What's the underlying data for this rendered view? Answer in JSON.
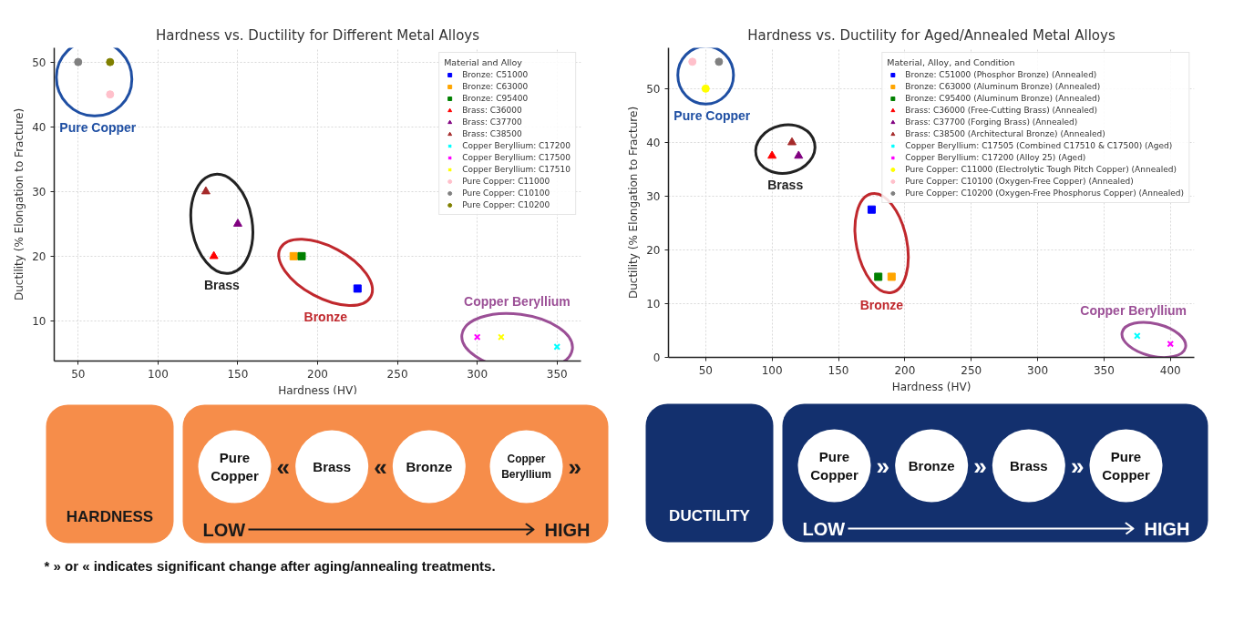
{
  "chart_data": [
    {
      "type": "scatter",
      "title": "Hardness vs. Ductility for Different Metal Alloys",
      "xlabel": "Hardness (HV)",
      "ylabel": "Ductility (% Elongation to Fracture)",
      "legend_title": "Material and Alloy",
      "legend": "top right",
      "grid": true,
      "xlim": [
        35,
        365
      ],
      "xticks": [
        50,
        100,
        150,
        200,
        250,
        300,
        350
      ],
      "ylim": [
        3.8,
        52.2
      ],
      "yticks": [
        10,
        20,
        30,
        40,
        50
      ],
      "series": [
        {
          "name": "Bronze: C51000",
          "color": "#0000ff",
          "marker": "square",
          "x": [
            225
          ],
          "values": [
            15
          ]
        },
        {
          "name": "Bronze: C63000",
          "color": "#ffa500",
          "marker": "square",
          "x": [
            185
          ],
          "values": [
            20
          ]
        },
        {
          "name": "Bronze: C95400",
          "color": "#008000",
          "marker": "square",
          "x": [
            190
          ],
          "values": [
            20
          ]
        },
        {
          "name": "Brass: C36000",
          "color": "#ff0000",
          "marker": "triangle",
          "x": [
            135
          ],
          "values": [
            20
          ]
        },
        {
          "name": "Brass: C37700",
          "color": "#800080",
          "marker": "triangle",
          "x": [
            150
          ],
          "values": [
            25
          ]
        },
        {
          "name": "Brass: C38500",
          "color": "#a52a2a",
          "marker": "triangle",
          "x": [
            130
          ],
          "values": [
            30
          ]
        },
        {
          "name": "Copper Beryllium: C17200",
          "color": "#00ffff",
          "marker": "cross",
          "x": [
            350
          ],
          "values": [
            6
          ]
        },
        {
          "name": "Copper Beryllium: C17500",
          "color": "#ff00ff",
          "marker": "cross",
          "x": [
            300
          ],
          "values": [
            7.5
          ]
        },
        {
          "name": "Copper Beryllium: C17510",
          "color": "#ffff00",
          "marker": "cross",
          "x": [
            315
          ],
          "values": [
            7.5
          ]
        },
        {
          "name": "Pure Copper: C11000",
          "color": "#ffc0cb",
          "marker": "circle",
          "x": [
            70
          ],
          "values": [
            45
          ]
        },
        {
          "name": "Pure Copper: C10100",
          "color": "#808080",
          "marker": "circle",
          "x": [
            50
          ],
          "values": [
            50
          ]
        },
        {
          "name": "Pure Copper: C10200",
          "color": "#808000",
          "marker": "circle",
          "x": [
            70
          ],
          "values": [
            50
          ]
        }
      ],
      "annotations": [
        "Bronze",
        "Brass",
        "Copper Beryllium",
        "Pure Copper"
      ]
    },
    {
      "type": "scatter",
      "title": "Hardness vs. Ductility for Aged/Annealed Metal Alloys",
      "xlabel": "Hardness (HV)",
      "ylabel": "Ductility (% Elongation to Fracture)",
      "legend_title": "Material, Alloy, and Condition",
      "legend": "top right",
      "grid": true,
      "xlim": [
        22,
        418
      ],
      "xticks": [
        50,
        100,
        150,
        200,
        250,
        300,
        350,
        400
      ],
      "ylim": [
        0,
        57.6
      ],
      "yticks": [
        0,
        10,
        20,
        30,
        40,
        50
      ],
      "series": [
        {
          "name": "Bronze: C51000 (Phosphor Bronze) (Annealed)",
          "color": "#0000ff",
          "marker": "square",
          "x": [
            175
          ],
          "values": [
            27.5
          ]
        },
        {
          "name": "Bronze: C63000 (Aluminum Bronze) (Annealed)",
          "color": "#ffa500",
          "marker": "square",
          "x": [
            190
          ],
          "values": [
            15
          ]
        },
        {
          "name": "Bronze: C95400 (Aluminum Bronze) (Annealed)",
          "color": "#008000",
          "marker": "square",
          "x": [
            180
          ],
          "values": [
            15
          ]
        },
        {
          "name": "Brass: C36000 (Free-Cutting Brass) (Annealed)",
          "color": "#ff0000",
          "marker": "triangle",
          "x": [
            100
          ],
          "values": [
            37.5
          ]
        },
        {
          "name": "Brass: C37700 (Forging Brass) (Annealed)",
          "color": "#800080",
          "marker": "triangle",
          "x": [
            120
          ],
          "values": [
            37.5
          ]
        },
        {
          "name": "Brass: C38500 (Architectural Bronze) (Annealed)",
          "color": "#a52a2a",
          "marker": "triangle",
          "x": [
            115
          ],
          "values": [
            40
          ]
        },
        {
          "name": "Copper Beryllium: C17505 (Combined C17510 & C17500) (Aged)",
          "color": "#00ffff",
          "marker": "cross",
          "x": [
            375
          ],
          "values": [
            4
          ]
        },
        {
          "name": "Copper Beryllium: C17200 (Alloy 25) (Aged)",
          "color": "#ff00ff",
          "marker": "cross",
          "x": [
            400
          ],
          "values": [
            2.5
          ]
        },
        {
          "name": "Pure Copper: C11000 (Electrolytic Tough Pitch Copper) (Annealed)",
          "color": "#ffff00",
          "marker": "circle",
          "x": [
            50
          ],
          "values": [
            50
          ]
        },
        {
          "name": "Pure Copper: C10100 (Oxygen-Free Copper) (Annealed)",
          "color": "#ffc0cb",
          "marker": "circle",
          "x": [
            40
          ],
          "values": [
            55
          ]
        },
        {
          "name": "Pure Copper: C10200 (Oxygen-Free Phosphorus Copper) (Annealed)",
          "color": "#808080",
          "marker": "circle",
          "x": [
            60
          ],
          "values": [
            55
          ]
        }
      ],
      "annotations": [
        "Bronze",
        "Brass",
        "Copper Beryllium",
        "Pure Copper"
      ]
    },
    {
      "type": "other",
      "title": "HARDNESS",
      "color": "#f68d4a",
      "categories": [
        "Pure Copper",
        "Brass",
        "Bronze",
        "Copper Beryllium"
      ],
      "annotations": [
        {
          "text": "«",
          "x": "Pure Copper"
        },
        {
          "text": "«",
          "x": "Brass"
        },
        {
          "text": "»",
          "x": "Copper Beryllium"
        },
        "LOW",
        "HIGH",
        "* » or « indicates significant change after aging/annealing treatments."
      ]
    },
    {
      "type": "other",
      "title": "DUCTILITY",
      "color": "#13306e",
      "categories": [
        "Pure Copper",
        "Bronze",
        "Brass",
        "Pure Copper"
      ],
      "annotations": [
        {
          "text": "»",
          "x": "Pure Copper"
        },
        {
          "text": "»",
          "x": "Bronze"
        },
        {
          "text": "»",
          "x": "Brass"
        },
        "LOW",
        "HIGH"
      ]
    }
  ]
}
